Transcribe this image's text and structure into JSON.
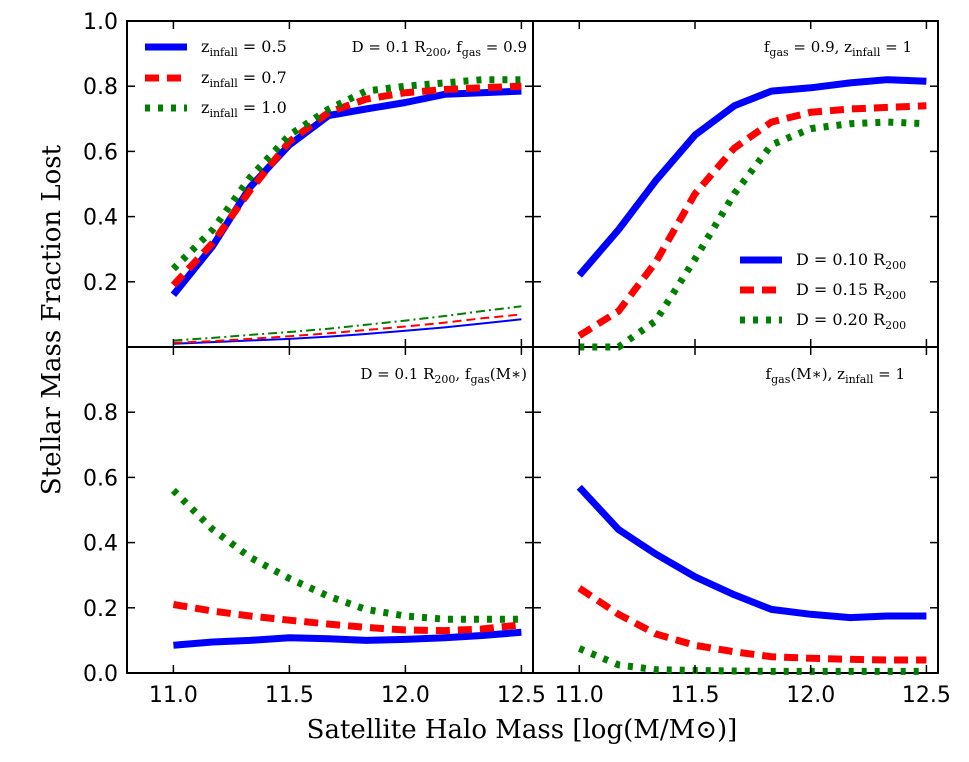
{
  "chart_data": {
    "type": "line",
    "title": "",
    "xlabel": "Satellite Halo Mass [log(M/M⊙)]",
    "ylabel": "Stellar Mass Fraction Lost",
    "xlim": [
      10.8,
      12.55
    ],
    "ylim": [
      0.0,
      1.0
    ],
    "xticks": [
      "11.0",
      "11.5",
      "12.0",
      "12.5"
    ],
    "yticks_top": [
      "0.2",
      "0.4",
      "0.6",
      "0.8",
      "1.0"
    ],
    "yticks_bottom": [
      "0.0",
      "0.2",
      "0.4",
      "0.6",
      "0.8"
    ],
    "colors": {
      "blue": "#0000ff",
      "red": "#ff0000",
      "green": "#007f00"
    },
    "panels": [
      {
        "id": "top-left",
        "annotation": {
          "main": "D = 0.1 R",
          "sub1": "200",
          "mid": ", f",
          "sub2": "gas",
          "tail": " = 0.9"
        },
        "legend": [
          {
            "label": "z",
            "sub": "infall",
            "value": " = 0.5"
          },
          {
            "label": "z",
            "sub": "infall",
            "value": " = 0.7"
          },
          {
            "label": "z",
            "sub": "infall",
            "value": " = 1.0"
          }
        ],
        "series": [
          {
            "name": "z_infall = 0.5",
            "color": "blue",
            "style": "solid",
            "width": "thick",
            "x": [
              11.0,
              11.17,
              11.33,
              11.5,
              11.67,
              11.83,
              12.0,
              12.17,
              12.33,
              12.5
            ],
            "y": [
              0.16,
              0.31,
              0.49,
              0.62,
              0.71,
              0.73,
              0.75,
              0.775,
              0.78,
              0.785
            ]
          },
          {
            "name": "z_infall = 0.7",
            "color": "red",
            "style": "dashed",
            "width": "thick",
            "x": [
              11.0,
              11.17,
              11.33,
              11.5,
              11.67,
              11.83,
              12.0,
              12.17,
              12.33,
              12.5
            ],
            "y": [
              0.19,
              0.32,
              0.48,
              0.63,
              0.72,
              0.76,
              0.78,
              0.79,
              0.795,
              0.8
            ]
          },
          {
            "name": "z_infall = 1.0",
            "color": "green",
            "style": "dotted",
            "width": "thick",
            "x": [
              11.0,
              11.17,
              11.33,
              11.5,
              11.67,
              11.83,
              12.0,
              12.17,
              12.33,
              12.5
            ],
            "y": [
              0.24,
              0.36,
              0.52,
              0.65,
              0.73,
              0.785,
              0.8,
              0.81,
              0.82,
              0.82
            ]
          },
          {
            "name": "z_infall = 0.5 (thin)",
            "color": "blue",
            "style": "solid",
            "width": "thin",
            "x": [
              11.0,
              11.17,
              11.33,
              11.5,
              11.67,
              11.83,
              12.0,
              12.17,
              12.33,
              12.5
            ],
            "y": [
              0.01,
              0.015,
              0.02,
              0.025,
              0.032,
              0.04,
              0.05,
              0.06,
              0.072,
              0.085
            ]
          },
          {
            "name": "z_infall = 0.7 (thin)",
            "color": "red",
            "style": "dashed",
            "width": "thin",
            "x": [
              11.0,
              11.17,
              11.33,
              11.5,
              11.67,
              11.83,
              12.0,
              12.17,
              12.33,
              12.5
            ],
            "y": [
              0.013,
              0.018,
              0.025,
              0.033,
              0.042,
              0.052,
              0.063,
              0.075,
              0.088,
              0.1
            ]
          },
          {
            "name": "z_infall = 1.0 (thin)",
            "color": "green",
            "style": "dashdot",
            "width": "thin",
            "x": [
              11.0,
              11.17,
              11.33,
              11.5,
              11.67,
              11.83,
              12.0,
              12.17,
              12.33,
              12.5
            ],
            "y": [
              0.02,
              0.028,
              0.037,
              0.046,
              0.056,
              0.068,
              0.081,
              0.095,
              0.11,
              0.125
            ]
          }
        ]
      },
      {
        "id": "top-right",
        "annotation": {
          "main": "f",
          "sub1": "gas",
          "mid": " = 0.9, z",
          "sub2": "infall",
          "tail": " = 1"
        },
        "legend": [
          {
            "label": "D = 0.10 R",
            "sub": "200",
            "value": ""
          },
          {
            "label": "D = 0.15 R",
            "sub": "200",
            "value": ""
          },
          {
            "label": "D = 0.20 R",
            "sub": "200",
            "value": ""
          }
        ],
        "series": [
          {
            "name": "D = 0.10 R200",
            "color": "blue",
            "style": "solid",
            "width": "thick",
            "x": [
              11.0,
              11.17,
              11.33,
              11.5,
              11.67,
              11.83,
              12.0,
              12.17,
              12.33,
              12.5
            ],
            "y": [
              0.22,
              0.36,
              0.51,
              0.65,
              0.74,
              0.785,
              0.795,
              0.81,
              0.82,
              0.815
            ]
          },
          {
            "name": "D = 0.15 R200",
            "color": "red",
            "style": "dashed",
            "width": "thick",
            "x": [
              11.0,
              11.17,
              11.33,
              11.5,
              11.67,
              11.83,
              12.0,
              12.17,
              12.33,
              12.5
            ],
            "y": [
              0.035,
              0.11,
              0.26,
              0.47,
              0.61,
              0.69,
              0.72,
              0.73,
              0.735,
              0.74
            ]
          },
          {
            "name": "D = 0.20 R200",
            "color": "green",
            "style": "dotted",
            "width": "thick",
            "x": [
              11.0,
              11.17,
              11.33,
              11.5,
              11.67,
              11.83,
              12.0,
              12.17,
              12.33,
              12.5
            ],
            "y": [
              0.0,
              0.0,
              0.08,
              0.27,
              0.47,
              0.62,
              0.67,
              0.685,
              0.69,
              0.685
            ]
          }
        ]
      },
      {
        "id": "bottom-left",
        "annotation": {
          "main": "D = 0.1 R",
          "sub1": "200",
          "mid": ", f",
          "sub2": "gas",
          "tail": "(M∗)"
        },
        "legend": [],
        "series": [
          {
            "name": "z_infall = 0.5",
            "color": "blue",
            "style": "solid",
            "width": "thick",
            "x": [
              11.0,
              11.17,
              11.33,
              11.5,
              11.67,
              11.83,
              12.0,
              12.17,
              12.33,
              12.5
            ],
            "y": [
              0.085,
              0.095,
              0.1,
              0.108,
              0.105,
              0.1,
              0.103,
              0.108,
              0.115,
              0.125
            ]
          },
          {
            "name": "z_infall = 0.7",
            "color": "red",
            "style": "dashed",
            "width": "thick",
            "x": [
              11.0,
              11.17,
              11.33,
              11.5,
              11.67,
              11.83,
              12.0,
              12.17,
              12.33,
              12.5
            ],
            "y": [
              0.21,
              0.19,
              0.175,
              0.162,
              0.15,
              0.14,
              0.132,
              0.13,
              0.135,
              0.148
            ]
          },
          {
            "name": "z_infall = 1.0",
            "color": "green",
            "style": "dotted",
            "width": "thick",
            "x": [
              11.0,
              11.17,
              11.33,
              11.5,
              11.67,
              11.83,
              12.0,
              12.17,
              12.33,
              12.5
            ],
            "y": [
              0.56,
              0.44,
              0.355,
              0.29,
              0.235,
              0.195,
              0.175,
              0.165,
              0.165,
              0.165
            ]
          }
        ]
      },
      {
        "id": "bottom-right",
        "annotation": {
          "main": "f",
          "sub1": "gas",
          "mid": "(M∗), z",
          "sub2": "infall",
          "tail": " = 1"
        },
        "legend": [],
        "series": [
          {
            "name": "D = 0.10 R200",
            "color": "blue",
            "style": "solid",
            "width": "thick",
            "x": [
              11.0,
              11.17,
              11.33,
              11.5,
              11.67,
              11.83,
              12.0,
              12.17,
              12.33,
              12.5
            ],
            "y": [
              0.57,
              0.44,
              0.365,
              0.295,
              0.24,
              0.195,
              0.18,
              0.17,
              0.175,
              0.175
            ]
          },
          {
            "name": "D = 0.15 R200",
            "color": "red",
            "style": "dashed",
            "width": "thick",
            "x": [
              11.0,
              11.17,
              11.33,
              11.5,
              11.67,
              11.83,
              12.0,
              12.17,
              12.33,
              12.5
            ],
            "y": [
              0.26,
              0.18,
              0.12,
              0.085,
              0.065,
              0.05,
              0.045,
              0.042,
              0.04,
              0.04
            ]
          },
          {
            "name": "D = 0.20 R200",
            "color": "green",
            "style": "dotted",
            "width": "thick",
            "x": [
              11.0,
              11.17,
              11.33,
              11.5,
              11.67,
              11.83,
              12.0,
              12.17,
              12.33,
              12.5
            ],
            "y": [
              0.075,
              0.025,
              0.01,
              0.008,
              0.006,
              0.005,
              0.005,
              0.005,
              0.005,
              0.005
            ]
          }
        ]
      }
    ]
  }
}
